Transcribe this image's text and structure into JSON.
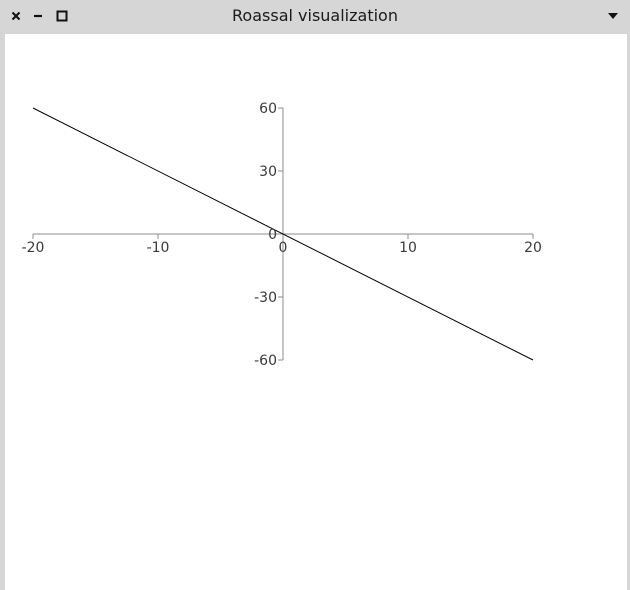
{
  "window": {
    "title": "Roassal visualization",
    "icons": {
      "close": "close-icon",
      "minimize": "minimize-icon",
      "maximize": "maximize-icon",
      "menu": "chevron-down-icon"
    }
  },
  "colors": {
    "titlebar": "#d6d6d6",
    "canvas_background": "#ffffff",
    "axis": "#8c8c8c",
    "line": "#000000",
    "tick_label": "#3a3a3a"
  },
  "chart_data": {
    "type": "line",
    "title": "",
    "xlabel": "",
    "ylabel": "",
    "xlim": [
      -20,
      20
    ],
    "ylim": [
      -60,
      60
    ],
    "x_ticks": [
      -20,
      -10,
      0,
      10,
      20
    ],
    "y_ticks": [
      60,
      30,
      0,
      -30,
      -60
    ],
    "x_tick_labels": [
      "-20",
      "-10",
      "0",
      "10",
      "20"
    ],
    "y_tick_labels": [
      "60",
      "30",
      "0",
      "-30",
      "-60"
    ],
    "grid": false,
    "series": [
      {
        "x": [
          -20,
          20
        ],
        "y": [
          60,
          -60
        ]
      }
    ]
  }
}
